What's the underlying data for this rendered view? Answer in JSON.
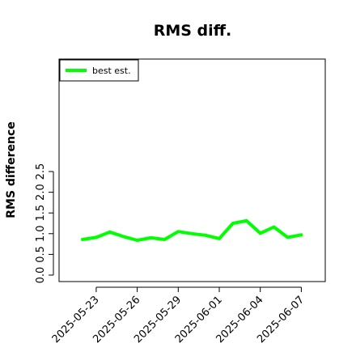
{
  "chart_data": {
    "type": "line",
    "title": "RMS diff.",
    "xlabel": "",
    "ylabel": "RMS difference",
    "x": [
      "2025-05-22",
      "2025-05-23",
      "2025-05-24",
      "2025-05-25",
      "2025-05-26",
      "2025-05-27",
      "2025-05-28",
      "2025-05-29",
      "2025-05-30",
      "2025-05-31",
      "2025-06-01",
      "2025-06-02",
      "2025-06-03",
      "2025-06-04",
      "2025-06-05",
      "2025-06-06",
      "2025-06-07"
    ],
    "x_tick_labels": [
      "2025-05-23",
      "2025-05-26",
      "2025-05-29",
      "2025-06-01",
      "2025-06-04",
      "2025-06-07"
    ],
    "ylim": [
      0,
      2.5
    ],
    "y_ticks": [
      "0.0",
      "0.5",
      "1.0",
      "1.5",
      "2.0",
      "2.5"
    ],
    "series": [
      {
        "name": "best est.",
        "color": "#00ff00",
        "values": [
          0.86,
          0.91,
          1.04,
          0.93,
          0.84,
          0.9,
          0.86,
          1.05,
          1.0,
          0.96,
          0.88,
          1.25,
          1.31,
          1.01,
          1.16,
          0.91,
          0.97
        ]
      }
    ],
    "legend": "top-left",
    "grid": false
  }
}
